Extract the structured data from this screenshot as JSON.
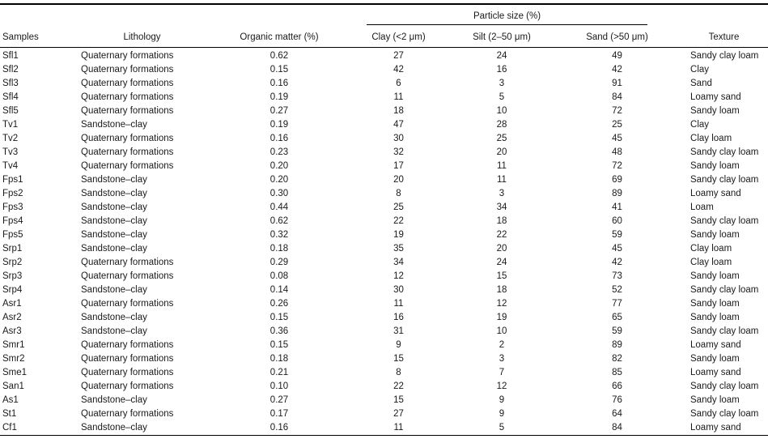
{
  "colors": {
    "background": "#ffffff",
    "text": "#1a1a1a",
    "rule": "#000000"
  },
  "table": {
    "group_header": "Particle size (%)",
    "columns": {
      "samples": "Samples",
      "lithology": "Lithology",
      "organic_matter": "Organic matter (%)",
      "clay": "Clay (<2 μm)",
      "silt": "Silt (2–50 μm)",
      "sand": "Sand (>50 μm)",
      "texture": "Texture"
    },
    "rows": [
      {
        "sample": "Sfl1",
        "lithology": "Quaternary formations",
        "organic_matter": "0.62",
        "clay": 27,
        "silt": 24,
        "sand": 49,
        "texture": "Sandy clay loam"
      },
      {
        "sample": "Sfl2",
        "lithology": "Quaternary formations",
        "organic_matter": "0.15",
        "clay": 42,
        "silt": 16,
        "sand": 42,
        "texture": "Clay"
      },
      {
        "sample": "Sfl3",
        "lithology": "Quaternary formations",
        "organic_matter": "0.16",
        "clay": 6,
        "silt": 3,
        "sand": 91,
        "texture": "Sand"
      },
      {
        "sample": "Sfl4",
        "lithology": "Quaternary formations",
        "organic_matter": "0.19",
        "clay": 11,
        "silt": 5,
        "sand": 84,
        "texture": "Loamy sand"
      },
      {
        "sample": "Sfl5",
        "lithology": "Quaternary formations",
        "organic_matter": "0.27",
        "clay": 18,
        "silt": 10,
        "sand": 72,
        "texture": "Sandy loam"
      },
      {
        "sample": "Tv1",
        "lithology": "Sandstone–clay",
        "organic_matter": "0.19",
        "clay": 47,
        "silt": 28,
        "sand": 25,
        "texture": "Clay"
      },
      {
        "sample": "Tv2",
        "lithology": "Quaternary formations",
        "organic_matter": "0.16",
        "clay": 30,
        "silt": 25,
        "sand": 45,
        "texture": "Clay loam"
      },
      {
        "sample": "Tv3",
        "lithology": "Quaternary formations",
        "organic_matter": "0.23",
        "clay": 32,
        "silt": 20,
        "sand": 48,
        "texture": "Sandy clay loam"
      },
      {
        "sample": "Tv4",
        "lithology": "Quaternary formations",
        "organic_matter": "0.20",
        "clay": 17,
        "silt": 11,
        "sand": 72,
        "texture": "Sandy loam"
      },
      {
        "sample": "Fps1",
        "lithology": "Sandstone–clay",
        "organic_matter": "0.20",
        "clay": 20,
        "silt": 11,
        "sand": 69,
        "texture": "Sandy clay loam"
      },
      {
        "sample": "Fps2",
        "lithology": "Sandstone–clay",
        "organic_matter": "0.30",
        "clay": 8,
        "silt": 3,
        "sand": 89,
        "texture": "Loamy sand"
      },
      {
        "sample": "Fps3",
        "lithology": "Sandstone–clay",
        "organic_matter": "0.44",
        "clay": 25,
        "silt": 34,
        "sand": 41,
        "texture": "Loam"
      },
      {
        "sample": "Fps4",
        "lithology": "Sandstone–clay",
        "organic_matter": "0.62",
        "clay": 22,
        "silt": 18,
        "sand": 60,
        "texture": "Sandy clay loam"
      },
      {
        "sample": "Fps5",
        "lithology": "Sandstone–clay",
        "organic_matter": "0.32",
        "clay": 19,
        "silt": 22,
        "sand": 59,
        "texture": "Sandy loam"
      },
      {
        "sample": "Srp1",
        "lithology": "Sandstone–clay",
        "organic_matter": "0.18",
        "clay": 35,
        "silt": 20,
        "sand": 45,
        "texture": "Clay loam"
      },
      {
        "sample": "Srp2",
        "lithology": "Quaternary formations",
        "organic_matter": "0.29",
        "clay": 34,
        "silt": 24,
        "sand": 42,
        "texture": "Clay loam"
      },
      {
        "sample": "Srp3",
        "lithology": "Quaternary formations",
        "organic_matter": "0.08",
        "clay": 12,
        "silt": 15,
        "sand": 73,
        "texture": "Sandy loam"
      },
      {
        "sample": "Srp4",
        "lithology": "Sandstone–clay",
        "organic_matter": "0.14",
        "clay": 30,
        "silt": 18,
        "sand": 52,
        "texture": "Sandy clay loam"
      },
      {
        "sample": "Asr1",
        "lithology": "Quaternary formations",
        "organic_matter": "0.26",
        "clay": 11,
        "silt": 12,
        "sand": 77,
        "texture": "Sandy loam"
      },
      {
        "sample": "Asr2",
        "lithology": "Sandstone–clay",
        "organic_matter": "0.15",
        "clay": 16,
        "silt": 19,
        "sand": 65,
        "texture": "Sandy loam"
      },
      {
        "sample": "Asr3",
        "lithology": "Sandstone–clay",
        "organic_matter": "0.36",
        "clay": 31,
        "silt": 10,
        "sand": 59,
        "texture": "Sandy clay loam"
      },
      {
        "sample": "Smr1",
        "lithology": "Quaternary formations",
        "organic_matter": "0.15",
        "clay": 9,
        "silt": 2,
        "sand": 89,
        "texture": "Loamy sand"
      },
      {
        "sample": "Smr2",
        "lithology": "Quaternary formations",
        "organic_matter": "0.18",
        "clay": 15,
        "silt": 3,
        "sand": 82,
        "texture": "Sandy loam"
      },
      {
        "sample": "Sme1",
        "lithology": "Quaternary formations",
        "organic_matter": "0.21",
        "clay": 8,
        "silt": 7,
        "sand": 85,
        "texture": "Loamy sand"
      },
      {
        "sample": "San1",
        "lithology": "Quaternary formations",
        "organic_matter": "0.10",
        "clay": 22,
        "silt": 12,
        "sand": 66,
        "texture": "Sandy clay loam"
      },
      {
        "sample": "As1",
        "lithology": "Sandstone–clay",
        "organic_matter": "0.27",
        "clay": 15,
        "silt": 9,
        "sand": 76,
        "texture": "Sandy loam"
      },
      {
        "sample": "St1",
        "lithology": "Quaternary formations",
        "organic_matter": "0.17",
        "clay": 27,
        "silt": 9,
        "sand": 64,
        "texture": "Sandy clay loam"
      },
      {
        "sample": "Cf1",
        "lithology": "Sandstone–clay",
        "organic_matter": "0.16",
        "clay": 11,
        "silt": 5,
        "sand": 84,
        "texture": "Loamy sand"
      }
    ]
  }
}
